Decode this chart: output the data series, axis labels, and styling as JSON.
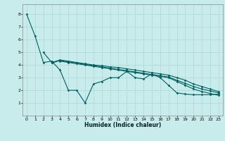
{
  "title": "",
  "xlabel": "Humidex (Indice chaleur)",
  "ylabel": "",
  "bg_color": "#c8ecec",
  "grid_color": "#b8d8d8",
  "line_color": "#006060",
  "xlim": [
    -0.5,
    23.5
  ],
  "ylim": [
    0,
    8.8
  ],
  "xticks": [
    0,
    1,
    2,
    3,
    4,
    5,
    6,
    7,
    8,
    9,
    10,
    11,
    12,
    13,
    14,
    15,
    16,
    17,
    18,
    19,
    20,
    21,
    22,
    23
  ],
  "yticks": [
    1,
    2,
    3,
    4,
    5,
    6,
    7,
    8
  ],
  "series": [
    {
      "x": [
        0,
        1,
        2,
        3,
        4,
        5,
        6,
        7,
        8,
        9,
        10,
        11,
        12,
        13,
        14,
        15,
        16,
        17,
        18,
        19,
        20,
        21,
        22,
        23
      ],
      "y": [
        8.0,
        6.3,
        4.2,
        4.3,
        3.6,
        2.0,
        2.0,
        1.0,
        2.5,
        2.7,
        3.0,
        3.0,
        3.5,
        3.0,
        2.9,
        3.3,
        3.0,
        2.4,
        1.8,
        1.7,
        1.65,
        1.65,
        1.65,
        1.7
      ]
    },
    {
      "x": [
        2,
        3,
        4,
        5,
        6,
        7,
        8,
        9,
        10,
        11,
        12,
        13,
        14,
        15,
        16,
        17,
        18,
        19,
        20,
        21,
        22,
        23
      ],
      "y": [
        5.0,
        4.2,
        4.4,
        4.3,
        4.2,
        4.1,
        4.0,
        3.95,
        3.85,
        3.8,
        3.7,
        3.6,
        3.5,
        3.4,
        3.3,
        3.2,
        3.0,
        2.8,
        2.5,
        2.3,
        2.1,
        1.9
      ]
    },
    {
      "x": [
        3,
        4,
        5,
        6,
        7,
        8,
        9,
        10,
        11,
        12,
        13,
        14,
        15,
        16,
        17,
        18,
        19,
        20,
        21,
        22,
        23
      ],
      "y": [
        4.15,
        4.35,
        4.25,
        4.15,
        4.05,
        3.95,
        3.85,
        3.75,
        3.65,
        3.55,
        3.45,
        3.35,
        3.25,
        3.15,
        3.05,
        2.8,
        2.55,
        2.3,
        2.1,
        1.95,
        1.8
      ]
    },
    {
      "x": [
        4,
        5,
        6,
        7,
        8,
        9,
        10,
        11,
        12,
        13,
        14,
        15,
        16,
        17,
        18,
        19,
        20,
        21,
        22,
        23
      ],
      "y": [
        4.3,
        4.2,
        4.1,
        4.0,
        3.9,
        3.8,
        3.7,
        3.6,
        3.5,
        3.4,
        3.3,
        3.2,
        3.1,
        3.0,
        2.7,
        2.4,
        2.1,
        1.9,
        1.75,
        1.6
      ]
    }
  ]
}
